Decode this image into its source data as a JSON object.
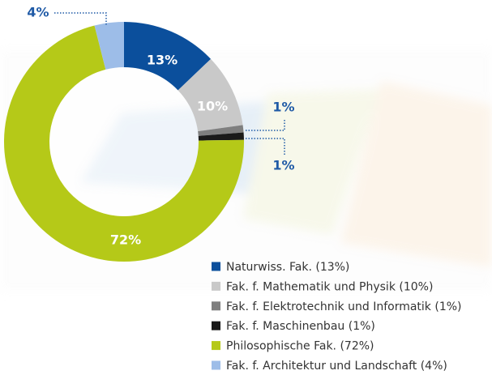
{
  "chart_data": {
    "type": "donut",
    "categories": [
      "Naturwiss. Fak. (13%)",
      "Fak. f. Mathematik und Physik (10%)",
      "Fak. f. Elektrotechnik und Informatik (1%)",
      "Fak. f. Maschinenbau (1%)",
      "Philosophische Fak. (72%)",
      "Fak. f. Architektur und Landschaft (4%)"
    ],
    "values": [
      13,
      10,
      1,
      1,
      72,
      4
    ],
    "value_labels": [
      "13%",
      "10%",
      "1%",
      "1%",
      "72%",
      "4%"
    ],
    "colors": [
      "#0b4f9c",
      "#c9c9c9",
      "#7f7f7f",
      "#1a1a1a",
      "#b5c918",
      "#9dbde8"
    ]
  }
}
